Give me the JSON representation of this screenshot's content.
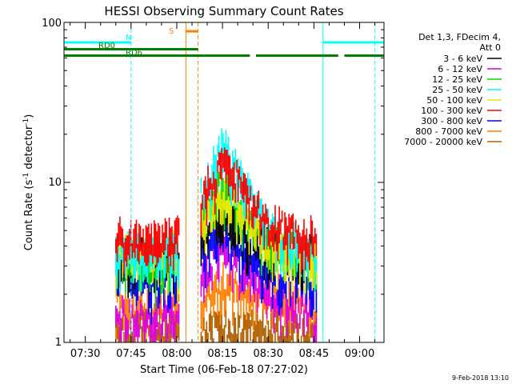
{
  "chart_data": {
    "type": "line",
    "title": "HESSI Observing Summary Count Rates",
    "xlabel": "Start Time (06-Feb-18 07:27:02)",
    "ylabel": "Count Rate (s⁻¹ detector⁻¹)",
    "ylabel_base": "Count Rate (s",
    "ylabel_mid": " detector",
    "ylabel_end": ")",
    "ylabel_exp": "-1",
    "y_scale": "log",
    "ylim": [
      1,
      100
    ],
    "xlim": [
      "07:23",
      "09:08"
    ],
    "x_ticks": [
      "07:30",
      "07:45",
      "08:00",
      "08:15",
      "08:30",
      "08:45",
      "09:00"
    ],
    "y_ticks": [
      "1",
      "10",
      "100"
    ],
    "legend_header": [
      "Det 1,3, FDecim 4,",
      "Att 0"
    ],
    "legend_position": "right",
    "series": [
      {
        "name": "3 - 6 keV",
        "color": "#000000",
        "values": [
          {
            "t": "07:40",
            "v": 3.8
          },
          {
            "t": "08:01",
            "v": 3.8
          },
          {
            "t": "08:15",
            "v": 7.0
          },
          {
            "t": "08:30",
            "v": 4.2
          },
          {
            "t": "08:45",
            "v": 3.8
          }
        ]
      },
      {
        "name": "6 - 12 keV",
        "color": "#e000e0",
        "values": [
          {
            "t": "07:40",
            "v": 1.6
          },
          {
            "t": "08:01",
            "v": 1.6
          },
          {
            "t": "08:15",
            "v": 4.0
          },
          {
            "t": "08:30",
            "v": 2.4
          },
          {
            "t": "08:45",
            "v": 1.6
          }
        ]
      },
      {
        "name": "12 - 25 keV",
        "color": "#00d800",
        "values": [
          {
            "t": "07:40",
            "v": 3.5
          },
          {
            "t": "08:01",
            "v": 3.5
          },
          {
            "t": "08:15",
            "v": 11.0
          },
          {
            "t": "08:30",
            "v": 4.5
          },
          {
            "t": "08:45",
            "v": 3.5
          }
        ]
      },
      {
        "name": "25 - 50 keV",
        "color": "#00ffff",
        "values": [
          {
            "t": "07:40",
            "v": 4.0
          },
          {
            "t": "08:01",
            "v": 4.0
          },
          {
            "t": "08:15",
            "v": 19.0
          },
          {
            "t": "08:30",
            "v": 5.5
          },
          {
            "t": "08:45",
            "v": 4.0
          }
        ]
      },
      {
        "name": "50 - 100 keV",
        "color": "#e8e800",
        "values": [
          {
            "t": "07:40",
            "v": 4.0
          },
          {
            "t": "08:01",
            "v": 4.0
          },
          {
            "t": "08:15",
            "v": 9.0
          },
          {
            "t": "08:30",
            "v": 4.5
          },
          {
            "t": "08:45",
            "v": 4.0
          }
        ]
      },
      {
        "name": "100 - 300 keV",
        "color": "#ff0000",
        "values": [
          {
            "t": "07:40",
            "v": 5.0
          },
          {
            "t": "08:01",
            "v": 5.0
          },
          {
            "t": "08:15",
            "v": 15.0
          },
          {
            "t": "08:30",
            "v": 6.0
          },
          {
            "t": "08:45",
            "v": 5.0
          }
        ]
      },
      {
        "name": "300 - 800 keV",
        "color": "#0000ff",
        "values": [
          {
            "t": "07:40",
            "v": 2.8
          },
          {
            "t": "08:01",
            "v": 2.8
          },
          {
            "t": "08:15",
            "v": 5.5
          },
          {
            "t": "08:30",
            "v": 3.2
          },
          {
            "t": "08:45",
            "v": 2.8
          }
        ]
      },
      {
        "name": "800 - 7000 keV",
        "color": "#ff8000",
        "values": [
          {
            "t": "07:40",
            "v": 1.9
          },
          {
            "t": "08:01",
            "v": 1.9
          },
          {
            "t": "08:15",
            "v": 2.6
          },
          {
            "t": "08:30",
            "v": 2.2
          },
          {
            "t": "08:45",
            "v": 1.9
          }
        ]
      },
      {
        "name": "7000 - 20000 keV",
        "color": "#b06000",
        "values": [
          {
            "t": "07:40",
            "v": 1.3
          },
          {
            "t": "08:01",
            "v": 1.3
          },
          {
            "t": "08:15",
            "v": 1.3
          },
          {
            "t": "08:30",
            "v": 1.3
          },
          {
            "t": "08:45",
            "v": 1.3
          }
        ]
      }
    ],
    "flags": [
      {
        "label": "N",
        "color": "#00ffff",
        "level": 75,
        "segments": [
          [
            "07:23",
            "07:45"
          ],
          [
            "08:48",
            "09:08"
          ]
        ]
      },
      {
        "label": "RD0",
        "color": "#008000",
        "level": 68,
        "segments": [
          [
            "07:23",
            "08:07"
          ]
        ]
      },
      {
        "label": "RD6",
        "color": "#008000",
        "level": 62,
        "segments": [
          [
            "07:23",
            "08:09"
          ],
          [
            "08:09",
            "08:24"
          ],
          [
            "08:26",
            "08:53"
          ],
          [
            "08:55",
            "09:08"
          ]
        ]
      },
      {
        "label": "S",
        "color": "#ff8000",
        "level": 88,
        "segments": [
          [
            "08:03",
            "08:07"
          ]
        ]
      }
    ],
    "vlines": [
      {
        "t": "07:23",
        "color": "#00ffff",
        "dash": false
      },
      {
        "t": "07:45",
        "color": "#00ffff",
        "dash": true
      },
      {
        "t": "08:03",
        "color": "#ff8000",
        "dash": false
      },
      {
        "t": "08:07",
        "color": "#ff8000",
        "dash": true
      },
      {
        "t": "08:48",
        "color": "#00ffff",
        "dash": false
      },
      {
        "t": "09:05",
        "color": "#00ffff",
        "dash": true
      }
    ],
    "gaps": [
      [
        "08:01",
        "08:08"
      ]
    ],
    "data_start": "07:40",
    "data_end": "08:46",
    "flare_peak": "08:15"
  },
  "footer": {
    "stamp": "9-Feb-2018 13:10"
  }
}
